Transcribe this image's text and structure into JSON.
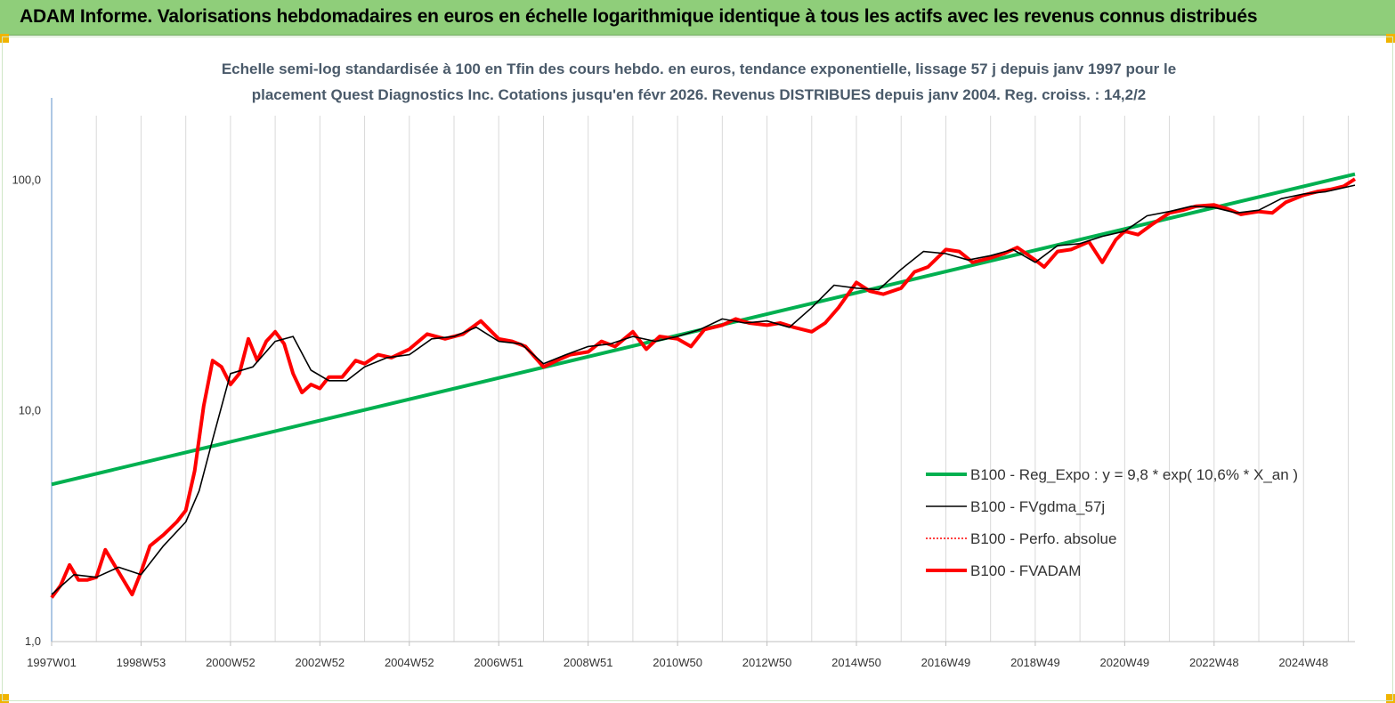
{
  "header": {
    "title": "ADAM Informe. Valorisations hebdomadaires en euros en échelle logarithmique identique à tous les actifs avec les revenus connus distribués"
  },
  "chart_data": {
    "type": "line",
    "title_line1": "Echelle semi-log standardisée à 100 en Tfin des cours hebdo. en euros, tendance exponentielle, lissage 57 j depuis janv 1997 pour le",
    "title_line2": "placement Quest Diagnostics Inc. Cotations jusqu'en févr 2026. Revenus DISTRIBUES depuis janv 2004. Reg. croiss. : 14,2/2",
    "y_scale": "log",
    "ylim": [
      1,
      190
    ],
    "y_ticks": [
      {
        "value": 1,
        "label": "1,0"
      },
      {
        "value": 10,
        "label": "10,0"
      },
      {
        "value": 100,
        "label": "100,0"
      }
    ],
    "x_range": [
      1997.0,
      2026.15
    ],
    "x_ticks": [
      {
        "value": 1997.0,
        "label": "1997W01"
      },
      {
        "value": 1999.0,
        "label": "1998W53"
      },
      {
        "value": 2001.0,
        "label": "2000W52"
      },
      {
        "value": 2003.0,
        "label": "2002W52"
      },
      {
        "value": 2005.0,
        "label": "2004W52"
      },
      {
        "value": 2007.0,
        "label": "2006W51"
      },
      {
        "value": 2009.0,
        "label": "2008W51"
      },
      {
        "value": 2011.0,
        "label": "2010W50"
      },
      {
        "value": 2013.0,
        "label": "2012W50"
      },
      {
        "value": 2015.0,
        "label": "2014W50"
      },
      {
        "value": 2017.0,
        "label": "2016W49"
      },
      {
        "value": 2019.0,
        "label": "2018W49"
      },
      {
        "value": 2021.0,
        "label": "2020W49"
      },
      {
        "value": 2023.0,
        "label": "2022W48"
      },
      {
        "value": 2025.0,
        "label": "2024W48"
      }
    ],
    "grid": "vertical",
    "legend_position": "lower-right",
    "series": [
      {
        "name": "B100 - Reg_Expo : y = 9,8 * exp( 10,6% *  X_an )",
        "color": "#00b050",
        "style": "thick",
        "x": [
          1997.0,
          2026.15
        ],
        "y": [
          4.8,
          106
        ]
      },
      {
        "name": "B100 - FVgdma_57j",
        "color": "#000000",
        "style": "thin",
        "x": [
          1997.0,
          1997.5,
          1998.0,
          1998.5,
          1999.0,
          1999.5,
          2000.0,
          2000.3,
          2000.6,
          2001.0,
          2001.5,
          2002.0,
          2002.4,
          2002.8,
          2003.2,
          2003.6,
          2004.0,
          2004.5,
          2005.0,
          2005.5,
          2006.0,
          2006.5,
          2007.0,
          2007.5,
          2008.0,
          2008.5,
          2009.0,
          2009.5,
          2010.0,
          2010.5,
          2011.0,
          2011.5,
          2012.0,
          2012.5,
          2013.0,
          2013.5,
          2014.0,
          2014.5,
          2015.0,
          2015.5,
          2016.0,
          2016.5,
          2017.0,
          2017.5,
          2018.0,
          2018.5,
          2019.0,
          2019.5,
          2020.0,
          2020.5,
          2021.0,
          2021.5,
          2022.0,
          2022.5,
          2023.0,
          2023.5,
          2024.0,
          2024.5,
          2025.0,
          2025.5,
          2026.15
        ],
        "y": [
          1.6,
          1.95,
          1.9,
          2.1,
          1.95,
          2.6,
          3.3,
          4.5,
          7.5,
          14.5,
          15.5,
          20.0,
          21.0,
          15.0,
          13.5,
          13.5,
          15.5,
          17.0,
          17.5,
          20.5,
          21.0,
          23.0,
          20.0,
          19.5,
          16.0,
          17.5,
          19.0,
          19.5,
          21.0,
          20.0,
          21.0,
          22.5,
          25.0,
          24.0,
          24.5,
          23.0,
          28.0,
          35.0,
          34.0,
          33.5,
          41.0,
          49.0,
          48.0,
          45.0,
          47.0,
          50.0,
          44.0,
          52.0,
          53.0,
          57.0,
          60.0,
          70.0,
          73.0,
          77.0,
          76.0,
          72.0,
          74.0,
          83.0,
          87.0,
          89.0,
          95.0
        ]
      },
      {
        "name": "B100 - Perfo. absolue",
        "color": "#ff0000",
        "style": "dotted"
      },
      {
        "name": "B100 - FVADAM",
        "color": "#ff0000",
        "style": "thick",
        "x": [
          1997.0,
          1997.2,
          1997.4,
          1997.6,
          1997.8,
          1998.0,
          1998.2,
          1998.5,
          1998.8,
          1999.0,
          1999.2,
          1999.5,
          1999.8,
          2000.0,
          2000.2,
          2000.4,
          2000.6,
          2000.8,
          2001.0,
          2001.2,
          2001.4,
          2001.6,
          2001.8,
          2002.0,
          2002.2,
          2002.4,
          2002.6,
          2002.8,
          2003.0,
          2003.2,
          2003.5,
          2003.8,
          2004.0,
          2004.3,
          2004.6,
          2005.0,
          2005.4,
          2005.8,
          2006.2,
          2006.6,
          2007.0,
          2007.3,
          2007.6,
          2008.0,
          2008.3,
          2008.6,
          2009.0,
          2009.3,
          2009.6,
          2010.0,
          2010.3,
          2010.6,
          2011.0,
          2011.3,
          2011.6,
          2012.0,
          2012.3,
          2012.6,
          2013.0,
          2013.3,
          2013.6,
          2014.0,
          2014.3,
          2014.6,
          2015.0,
          2015.3,
          2015.6,
          2016.0,
          2016.3,
          2016.6,
          2017.0,
          2017.3,
          2017.6,
          2018.0,
          2018.3,
          2018.6,
          2019.0,
          2019.2,
          2019.5,
          2019.8,
          2020.0,
          2020.2,
          2020.5,
          2020.8,
          2021.0,
          2021.3,
          2021.6,
          2022.0,
          2022.3,
          2022.6,
          2023.0,
          2023.3,
          2023.6,
          2024.0,
          2024.3,
          2024.6,
          2025.0,
          2025.3,
          2025.6,
          2025.9,
          2026.15
        ],
        "y": [
          1.55,
          1.75,
          2.15,
          1.85,
          1.85,
          1.9,
          2.5,
          2.0,
          1.6,
          2.0,
          2.6,
          2.9,
          3.3,
          3.7,
          5.5,
          10.5,
          16.5,
          15.5,
          13.0,
          14.5,
          20.5,
          16.5,
          20.0,
          22.0,
          19.5,
          14.5,
          12.0,
          13.0,
          12.5,
          14.0,
          14.0,
          16.5,
          16.0,
          17.5,
          17.0,
          18.5,
          21.5,
          20.5,
          21.5,
          24.5,
          20.5,
          20.0,
          19.0,
          15.5,
          16.5,
          17.5,
          18.0,
          20.0,
          19.0,
          22.0,
          18.5,
          21.0,
          20.5,
          19.0,
          22.5,
          23.5,
          25.0,
          24.0,
          23.5,
          24.0,
          23.0,
          22.0,
          24.0,
          28.0,
          36.0,
          33.0,
          32.0,
          34.0,
          40.0,
          42.0,
          50.0,
          49.0,
          44.0,
          46.0,
          48.0,
          51.0,
          45.0,
          42.0,
          49.0,
          50.0,
          52.0,
          54.0,
          44.0,
          55.0,
          60.0,
          58.0,
          64.0,
          72.0,
          74.0,
          77.0,
          78.0,
          75.0,
          71.0,
          73.0,
          72.0,
          80.0,
          86.0,
          89.0,
          91.0,
          94.0,
          101.0
        ]
      }
    ]
  }
}
